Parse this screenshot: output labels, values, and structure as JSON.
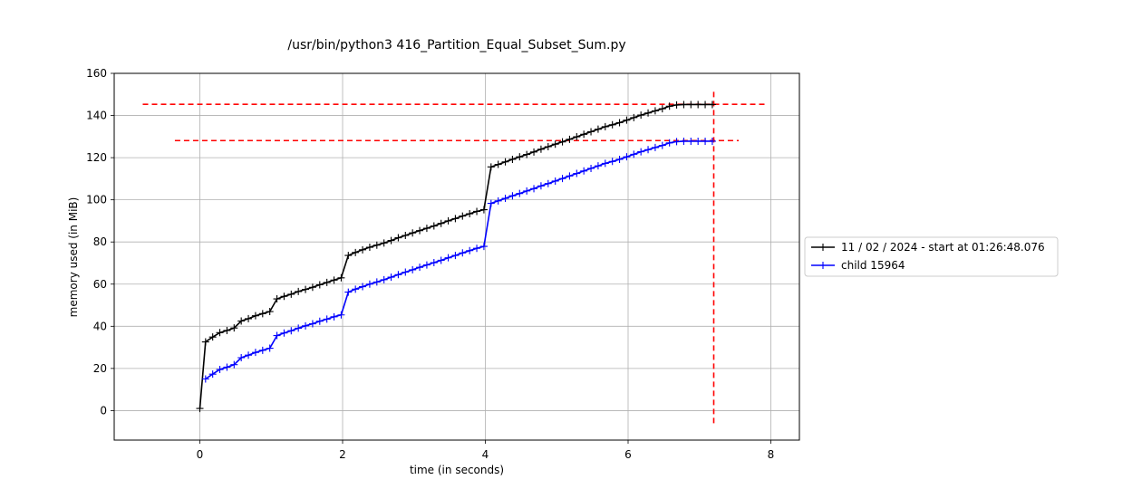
{
  "chart_data": {
    "type": "line",
    "title": "/usr/bin/python3 416_Partition_Equal_Subset_Sum.py",
    "xlabel": "time (in seconds)",
    "ylabel": "memory used (in MiB)",
    "xlim": [
      -1.2,
      8.4
    ],
    "ylim": [
      -14,
      160
    ],
    "xticks": [
      0,
      2,
      4,
      6,
      8
    ],
    "yticks": [
      0,
      20,
      40,
      60,
      80,
      100,
      120,
      140,
      160
    ],
    "grid": true,
    "legend_position": "right",
    "series": [
      {
        "name": "11 / 02 / 2024 - start at 01:26:48.076",
        "color": "#000000",
        "marker": "+",
        "x": [
          0,
          0.08,
          0.18,
          0.28,
          0.38,
          0.48,
          0.58,
          0.68,
          0.78,
          0.88,
          0.98,
          1.08,
          1.18,
          1.28,
          1.38,
          1.48,
          1.58,
          1.68,
          1.78,
          1.88,
          1.98,
          2.08,
          2.18,
          2.28,
          2.38,
          2.48,
          2.58,
          2.68,
          2.78,
          2.88,
          2.98,
          3.08,
          3.18,
          3.28,
          3.38,
          3.48,
          3.58,
          3.68,
          3.78,
          3.88,
          3.98,
          4.08,
          4.18,
          4.28,
          4.38,
          4.48,
          4.58,
          4.68,
          4.78,
          4.88,
          4.98,
          5.08,
          5.18,
          5.28,
          5.38,
          5.48,
          5.58,
          5.68,
          5.78,
          5.88,
          5.98,
          6.08,
          6.18,
          6.28,
          6.38,
          6.48,
          6.58,
          6.68,
          6.78,
          6.88,
          6.98,
          7.08,
          7.18
        ],
        "y": [
          1,
          32.6,
          34.9,
          37.0,
          38.0,
          39.2,
          42.5,
          43.6,
          45.0,
          46.0,
          47.0,
          53.0,
          54.2,
          55.2,
          56.5,
          57.5,
          58.5,
          59.7,
          60.8,
          61.9,
          63.0,
          73.6,
          75.0,
          76.3,
          77.5,
          78.5,
          79.5,
          80.7,
          82.0,
          83.1,
          84.3,
          85.4,
          86.5,
          87.6,
          88.8,
          90.0,
          91.1,
          92.3,
          93.4,
          94.5,
          95.3,
          115.6,
          116.8,
          118.0,
          119.2,
          120.4,
          121.5,
          122.7,
          124.0,
          125.2,
          126.4,
          127.5,
          128.7,
          129.9,
          131.1,
          132.3,
          133.5,
          134.7,
          135.6,
          136.6,
          137.8,
          139.0,
          140.2,
          141.2,
          142.2,
          143.2,
          144.4,
          145.0,
          145.2,
          145.2,
          145.2,
          145.2,
          145.2
        ]
      },
      {
        "name": "child 15964",
        "color": "#0000ff",
        "marker": "+",
        "x": [
          0.08,
          0.18,
          0.28,
          0.38,
          0.48,
          0.58,
          0.68,
          0.78,
          0.88,
          0.98,
          1.08,
          1.18,
          1.28,
          1.38,
          1.48,
          1.58,
          1.68,
          1.78,
          1.88,
          1.98,
          2.08,
          2.18,
          2.28,
          2.38,
          2.48,
          2.58,
          2.68,
          2.78,
          2.88,
          2.98,
          3.08,
          3.18,
          3.28,
          3.38,
          3.48,
          3.58,
          3.68,
          3.78,
          3.88,
          3.98,
          4.08,
          4.18,
          4.28,
          4.38,
          4.48,
          4.58,
          4.68,
          4.78,
          4.88,
          4.98,
          5.08,
          5.18,
          5.28,
          5.38,
          5.48,
          5.58,
          5.68,
          5.78,
          5.88,
          5.98,
          6.08,
          6.18,
          6.28,
          6.38,
          6.48,
          6.58,
          6.68,
          6.78,
          6.88,
          6.98,
          7.08,
          7.18
        ],
        "y": [
          15.0,
          17.3,
          19.5,
          20.6,
          21.8,
          25.1,
          26.3,
          27.6,
          28.6,
          29.6,
          35.6,
          36.8,
          37.9,
          39.1,
          40.2,
          41.2,
          42.4,
          43.4,
          44.5,
          45.4,
          56.2,
          57.6,
          58.8,
          60.0,
          61.0,
          62.1,
          63.3,
          64.5,
          65.7,
          66.8,
          68.0,
          69.1,
          70.2,
          71.3,
          72.5,
          73.6,
          74.8,
          75.9,
          77.0,
          77.9,
          98.3,
          99.5,
          100.7,
          101.9,
          103.0,
          104.2,
          105.3,
          106.6,
          107.7,
          108.9,
          110.1,
          111.3,
          112.5,
          113.7,
          114.9,
          116.1,
          117.3,
          118.2,
          119.2,
          120.4,
          121.6,
          122.8,
          123.8,
          124.8,
          125.8,
          127.0,
          127.6,
          127.8,
          127.8,
          127.8,
          127.8,
          127.8
        ]
      }
    ],
    "reference_lines": [
      {
        "orientation": "horizontal",
        "value": 145.3,
        "from": -0.8,
        "to": 7.95,
        "color": "#ff0000",
        "style": "dashed"
      },
      {
        "orientation": "horizontal",
        "value": 128.1,
        "from": -0.35,
        "to": 7.55,
        "color": "#ff0000",
        "style": "dashed"
      },
      {
        "orientation": "vertical",
        "value": 7.2,
        "from": -6,
        "to": 152,
        "color": "#ff0000",
        "style": "dashed"
      }
    ]
  }
}
